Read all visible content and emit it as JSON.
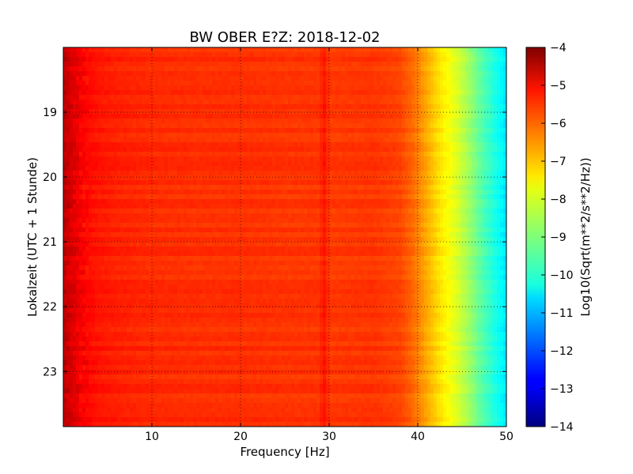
{
  "chart_data": {
    "type": "heatmap",
    "title": "BW OBER E?Z: 2018-12-02",
    "xlabel": "Frequency [Hz]",
    "ylabel": "Lokalzeit (UTC + 1 Stunde)",
    "xlim": [
      0,
      50
    ],
    "ylim": [
      18.0,
      23.85
    ],
    "x_ticks": [
      {
        "value": 10,
        "label": "10"
      },
      {
        "value": 20,
        "label": "20"
      },
      {
        "value": 30,
        "label": "30"
      },
      {
        "value": 40,
        "label": "40"
      },
      {
        "value": 50,
        "label": "50"
      }
    ],
    "y_ticks": [
      {
        "value": 19,
        "label": "19"
      },
      {
        "value": 20,
        "label": "20"
      },
      {
        "value": 21,
        "label": "21"
      },
      {
        "value": 22,
        "label": "22"
      },
      {
        "value": 23,
        "label": "23"
      }
    ],
    "y_axis_inverted": true,
    "grid": true,
    "colormap": "jet",
    "colorbar": {
      "label": "Log10(Sqrt(m**2/s**2/Hz))",
      "min": -14,
      "max": -4,
      "ticks": [
        {
          "value": -4,
          "label": "−4"
        },
        {
          "value": -5,
          "label": "−5"
        },
        {
          "value": -6,
          "label": "−6"
        },
        {
          "value": -7,
          "label": "−7"
        },
        {
          "value": -8,
          "label": "−8"
        },
        {
          "value": -9,
          "label": "−9"
        },
        {
          "value": -10,
          "label": "−10"
        },
        {
          "value": -11,
          "label": "−11"
        },
        {
          "value": -12,
          "label": "−12"
        },
        {
          "value": -13,
          "label": "−13"
        },
        {
          "value": -14,
          "label": "−14"
        }
      ]
    },
    "spectrum_profile": {
      "frequency_hz": [
        0,
        1,
        2,
        3,
        4,
        5,
        6,
        8,
        10,
        15,
        20,
        25,
        29,
        29.3,
        30,
        35,
        38,
        39.5,
        41,
        42,
        43,
        44,
        45,
        46,
        47,
        48,
        49,
        50
      ],
      "level": [
        -4.6,
        -4.9,
        -5.2,
        -5.35,
        -5.45,
        -5.5,
        -5.55,
        -5.6,
        -5.65,
        -5.7,
        -5.7,
        -5.75,
        -5.75,
        -5.35,
        -5.8,
        -5.75,
        -5.9,
        -6.3,
        -6.9,
        -7.3,
        -7.65,
        -7.95,
        -8.35,
        -8.8,
        -9.3,
        -9.7,
        -10.1,
        -10.5
      ]
    }
  }
}
